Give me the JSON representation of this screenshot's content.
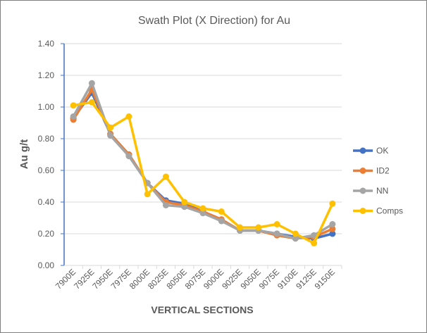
{
  "chart_data": {
    "type": "line",
    "title": "Swath Plot (X Direction) for Au",
    "xlabel": "VERTICAL SECTIONS",
    "ylabel": "Au g/t",
    "ylim": [
      0,
      1.4
    ],
    "yticks": [
      "0.00",
      "0.20",
      "0.40",
      "0.60",
      "0.80",
      "1.00",
      "1.20",
      "1.40"
    ],
    "grid": true,
    "legend": "right",
    "categories": [
      "7900E",
      "7925E",
      "7950E",
      "7975E",
      "8000E",
      "8025E",
      "8050E",
      "8075E",
      "9000E",
      "9025E",
      "9050E",
      "9075E",
      "9100E",
      "9125E",
      "9150E"
    ],
    "series": [
      {
        "name": "OK",
        "color": "#4472c4",
        "values": [
          0.93,
          1.09,
          0.83,
          0.7,
          0.52,
          0.41,
          0.39,
          0.34,
          0.29,
          0.22,
          0.22,
          0.2,
          0.18,
          0.17,
          0.2
        ]
      },
      {
        "name": "ID2",
        "color": "#ed7d31",
        "values": [
          0.92,
          1.11,
          0.83,
          0.7,
          0.52,
          0.4,
          0.38,
          0.34,
          0.29,
          0.22,
          0.22,
          0.19,
          0.17,
          0.18,
          0.23
        ]
      },
      {
        "name": "NN",
        "color": "#a5a5a5",
        "values": [
          0.94,
          1.15,
          0.82,
          0.69,
          0.52,
          0.38,
          0.37,
          0.33,
          0.28,
          0.22,
          0.22,
          0.2,
          0.17,
          0.19,
          0.26
        ]
      },
      {
        "name": "Comps",
        "color": "#ffc000",
        "values": [
          1.01,
          1.03,
          0.87,
          0.94,
          0.45,
          0.56,
          0.4,
          0.36,
          0.34,
          0.24,
          0.24,
          0.26,
          0.2,
          0.14,
          0.39
        ]
      }
    ]
  }
}
